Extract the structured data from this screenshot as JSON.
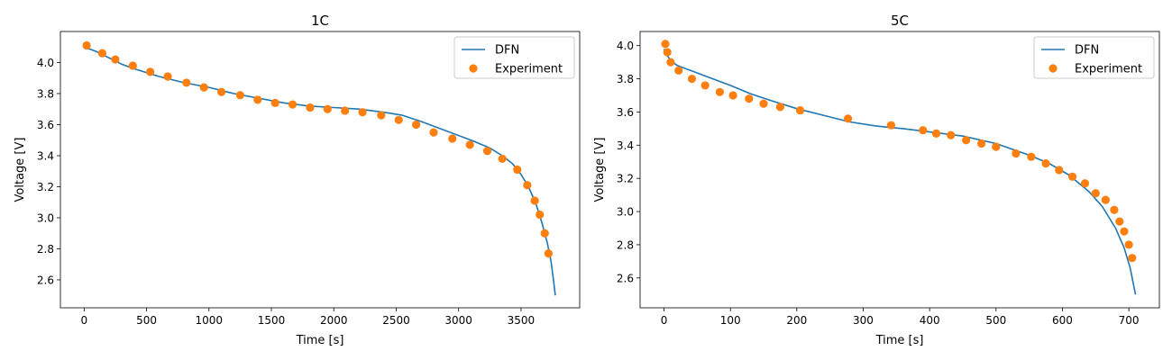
{
  "chart_data": [
    {
      "type": "line",
      "title": "1C",
      "xlabel": "Time [s]",
      "ylabel": "Voltage [V]",
      "xlim": [
        -190,
        3970
      ],
      "ylim": [
        2.42,
        4.2
      ],
      "xticks": [
        0,
        500,
        1000,
        1500,
        2000,
        2500,
        3000,
        3500
      ],
      "yticks": [
        2.6,
        2.8,
        3.0,
        3.2,
        3.4,
        3.6,
        3.8,
        4.0
      ],
      "ytick_decimals": 1,
      "legend": {
        "position": "top-right",
        "entries": [
          "DFN",
          "Experiment"
        ]
      },
      "series": [
        {
          "name": "DFN",
          "kind": "line",
          "color": "#1f77b4",
          "x": [
            0,
            100,
            200,
            300,
            400,
            600,
            800,
            1000,
            1200,
            1400,
            1600,
            1800,
            2000,
            2200,
            2400,
            2550,
            2700,
            2900,
            3100,
            3250,
            3350,
            3430,
            3500,
            3560,
            3620,
            3670,
            3710,
            3740,
            3760,
            3775
          ],
          "y": [
            4.1,
            4.07,
            4.03,
            3.99,
            3.96,
            3.91,
            3.87,
            3.84,
            3.8,
            3.77,
            3.74,
            3.72,
            3.71,
            3.7,
            3.68,
            3.66,
            3.62,
            3.56,
            3.5,
            3.45,
            3.4,
            3.35,
            3.28,
            3.2,
            3.09,
            2.96,
            2.84,
            2.72,
            2.6,
            2.5
          ]
        },
        {
          "name": "Experiment",
          "kind": "scatter",
          "color": "#ff7f0e",
          "x": [
            20,
            145,
            250,
            390,
            530,
            670,
            820,
            960,
            1100,
            1250,
            1390,
            1530,
            1670,
            1810,
            1950,
            2090,
            2230,
            2380,
            2520,
            2660,
            2800,
            2950,
            3090,
            3230,
            3350,
            3470,
            3550,
            3610,
            3650,
            3690,
            3720
          ],
          "y": [
            4.11,
            4.06,
            4.02,
            3.98,
            3.94,
            3.91,
            3.87,
            3.84,
            3.81,
            3.79,
            3.76,
            3.74,
            3.73,
            3.71,
            3.7,
            3.69,
            3.68,
            3.66,
            3.63,
            3.6,
            3.55,
            3.51,
            3.47,
            3.43,
            3.38,
            3.31,
            3.21,
            3.11,
            3.02,
            2.9,
            2.77
          ]
        }
      ]
    },
    {
      "type": "line",
      "title": "5C",
      "xlabel": "Time [s]",
      "ylabel": "Voltage [V]",
      "xlim": [
        -36,
        746
      ],
      "ylim": [
        2.42,
        4.085
      ],
      "xticks": [
        0,
        100,
        200,
        300,
        400,
        500,
        600,
        700
      ],
      "yticks": [
        2.6,
        2.8,
        3.0,
        3.2,
        3.4,
        3.6,
        3.8,
        4.0
      ],
      "ytick_decimals": 1,
      "legend": {
        "position": "top-right",
        "entries": [
          "DFN",
          "Experiment"
        ]
      },
      "series": [
        {
          "name": "DFN",
          "kind": "line",
          "color": "#1f77b4",
          "x": [
            0,
            5,
            10,
            20,
            40,
            60,
            80,
            100,
            130,
            160,
            200,
            240,
            280,
            320,
            360,
            400,
            450,
            500,
            550,
            580,
            610,
            640,
            660,
            680,
            693,
            702,
            710
          ],
          "y": [
            3.98,
            3.94,
            3.91,
            3.88,
            3.85,
            3.82,
            3.79,
            3.76,
            3.71,
            3.67,
            3.62,
            3.58,
            3.54,
            3.515,
            3.5,
            3.48,
            3.455,
            3.41,
            3.34,
            3.29,
            3.22,
            3.12,
            3.03,
            2.9,
            2.78,
            2.66,
            2.5
          ]
        },
        {
          "name": "Experiment",
          "kind": "scatter",
          "color": "#ff7f0e",
          "x": [
            2,
            5,
            10,
            22,
            42,
            62,
            84,
            104,
            128,
            150,
            175,
            205,
            277,
            342,
            390,
            410,
            432,
            455,
            478,
            500,
            530,
            553,
            575,
            595,
            615,
            634,
            650,
            665,
            678,
            686,
            693,
            700,
            705
          ],
          "y": [
            4.01,
            3.96,
            3.9,
            3.85,
            3.8,
            3.76,
            3.72,
            3.7,
            3.68,
            3.65,
            3.63,
            3.61,
            3.56,
            3.52,
            3.49,
            3.47,
            3.46,
            3.43,
            3.41,
            3.39,
            3.35,
            3.33,
            3.29,
            3.25,
            3.21,
            3.17,
            3.11,
            3.07,
            3.01,
            2.94,
            2.88,
            2.8,
            2.72
          ]
        }
      ]
    }
  ]
}
